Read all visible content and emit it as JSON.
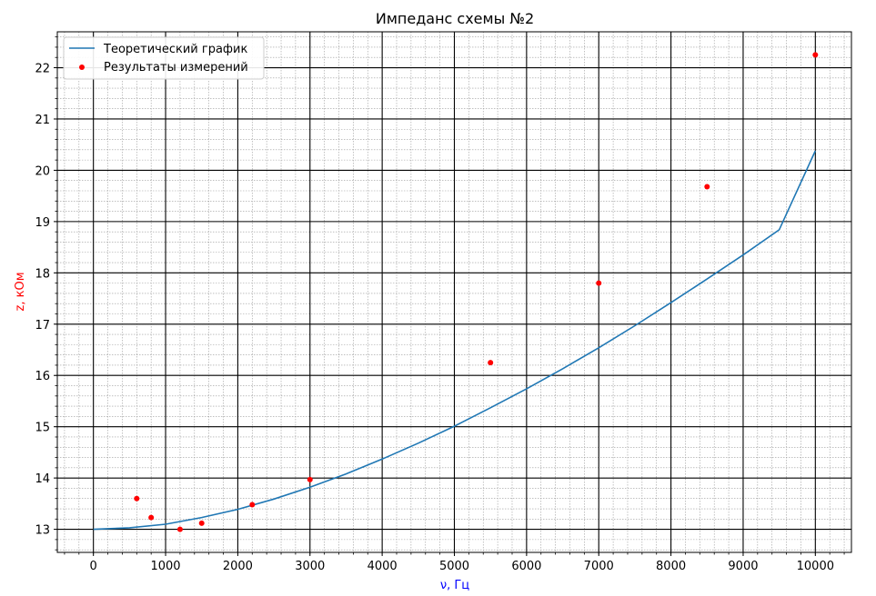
{
  "chart_data": {
    "type": "scatter",
    "title": "Импеданс схемы №2",
    "xlabel": "ν, Гц",
    "ylabel": "z, кОм",
    "xlabel_color": "#0000ff",
    "ylabel_color": "#ff0000",
    "xlim": [
      -500,
      10500
    ],
    "ylim": [
      12.55,
      22.7
    ],
    "xticks": [
      0,
      1000,
      2000,
      3000,
      4000,
      5000,
      6000,
      7000,
      8000,
      9000,
      10000
    ],
    "yticks": [
      13,
      14,
      15,
      16,
      17,
      18,
      19,
      20,
      21,
      22
    ],
    "xtick_labels": [
      "0",
      "1000",
      "2000",
      "3000",
      "4000",
      "5000",
      "6000",
      "7000",
      "8000",
      "9000",
      "10000"
    ],
    "ytick_labels": [
      "13",
      "14",
      "15",
      "16",
      "17",
      "18",
      "19",
      "20",
      "21",
      "22"
    ],
    "x_minor_step": 200,
    "y_minor_step": 0.2,
    "grid": true,
    "legend_position": "top-left",
    "series": [
      {
        "name": "Теоретический график",
        "kind": "line",
        "color": "#1f77b4",
        "x": [
          0,
          500,
          1000,
          1500,
          2000,
          2500,
          3000,
          3500,
          4000,
          4500,
          5000,
          5500,
          6000,
          6500,
          7000,
          7500,
          8000,
          8500,
          9000,
          9500,
          10000
        ],
        "y": [
          13.0,
          13.03,
          13.1,
          13.23,
          13.39,
          13.59,
          13.82,
          14.08,
          14.37,
          14.68,
          15.01,
          15.37,
          15.74,
          16.13,
          16.54,
          16.97,
          17.42,
          17.88,
          18.35,
          18.84,
          20.38
        ]
      },
      {
        "name": "Результаты измерений",
        "kind": "scatter",
        "color": "#ff0000",
        "x": [
          600,
          800,
          1200,
          1500,
          2200,
          3000,
          5500,
          7000,
          8500,
          10000
        ],
        "y": [
          13.6,
          13.23,
          13.0,
          13.12,
          13.48,
          13.97,
          16.25,
          17.8,
          19.68,
          22.25
        ]
      }
    ]
  }
}
